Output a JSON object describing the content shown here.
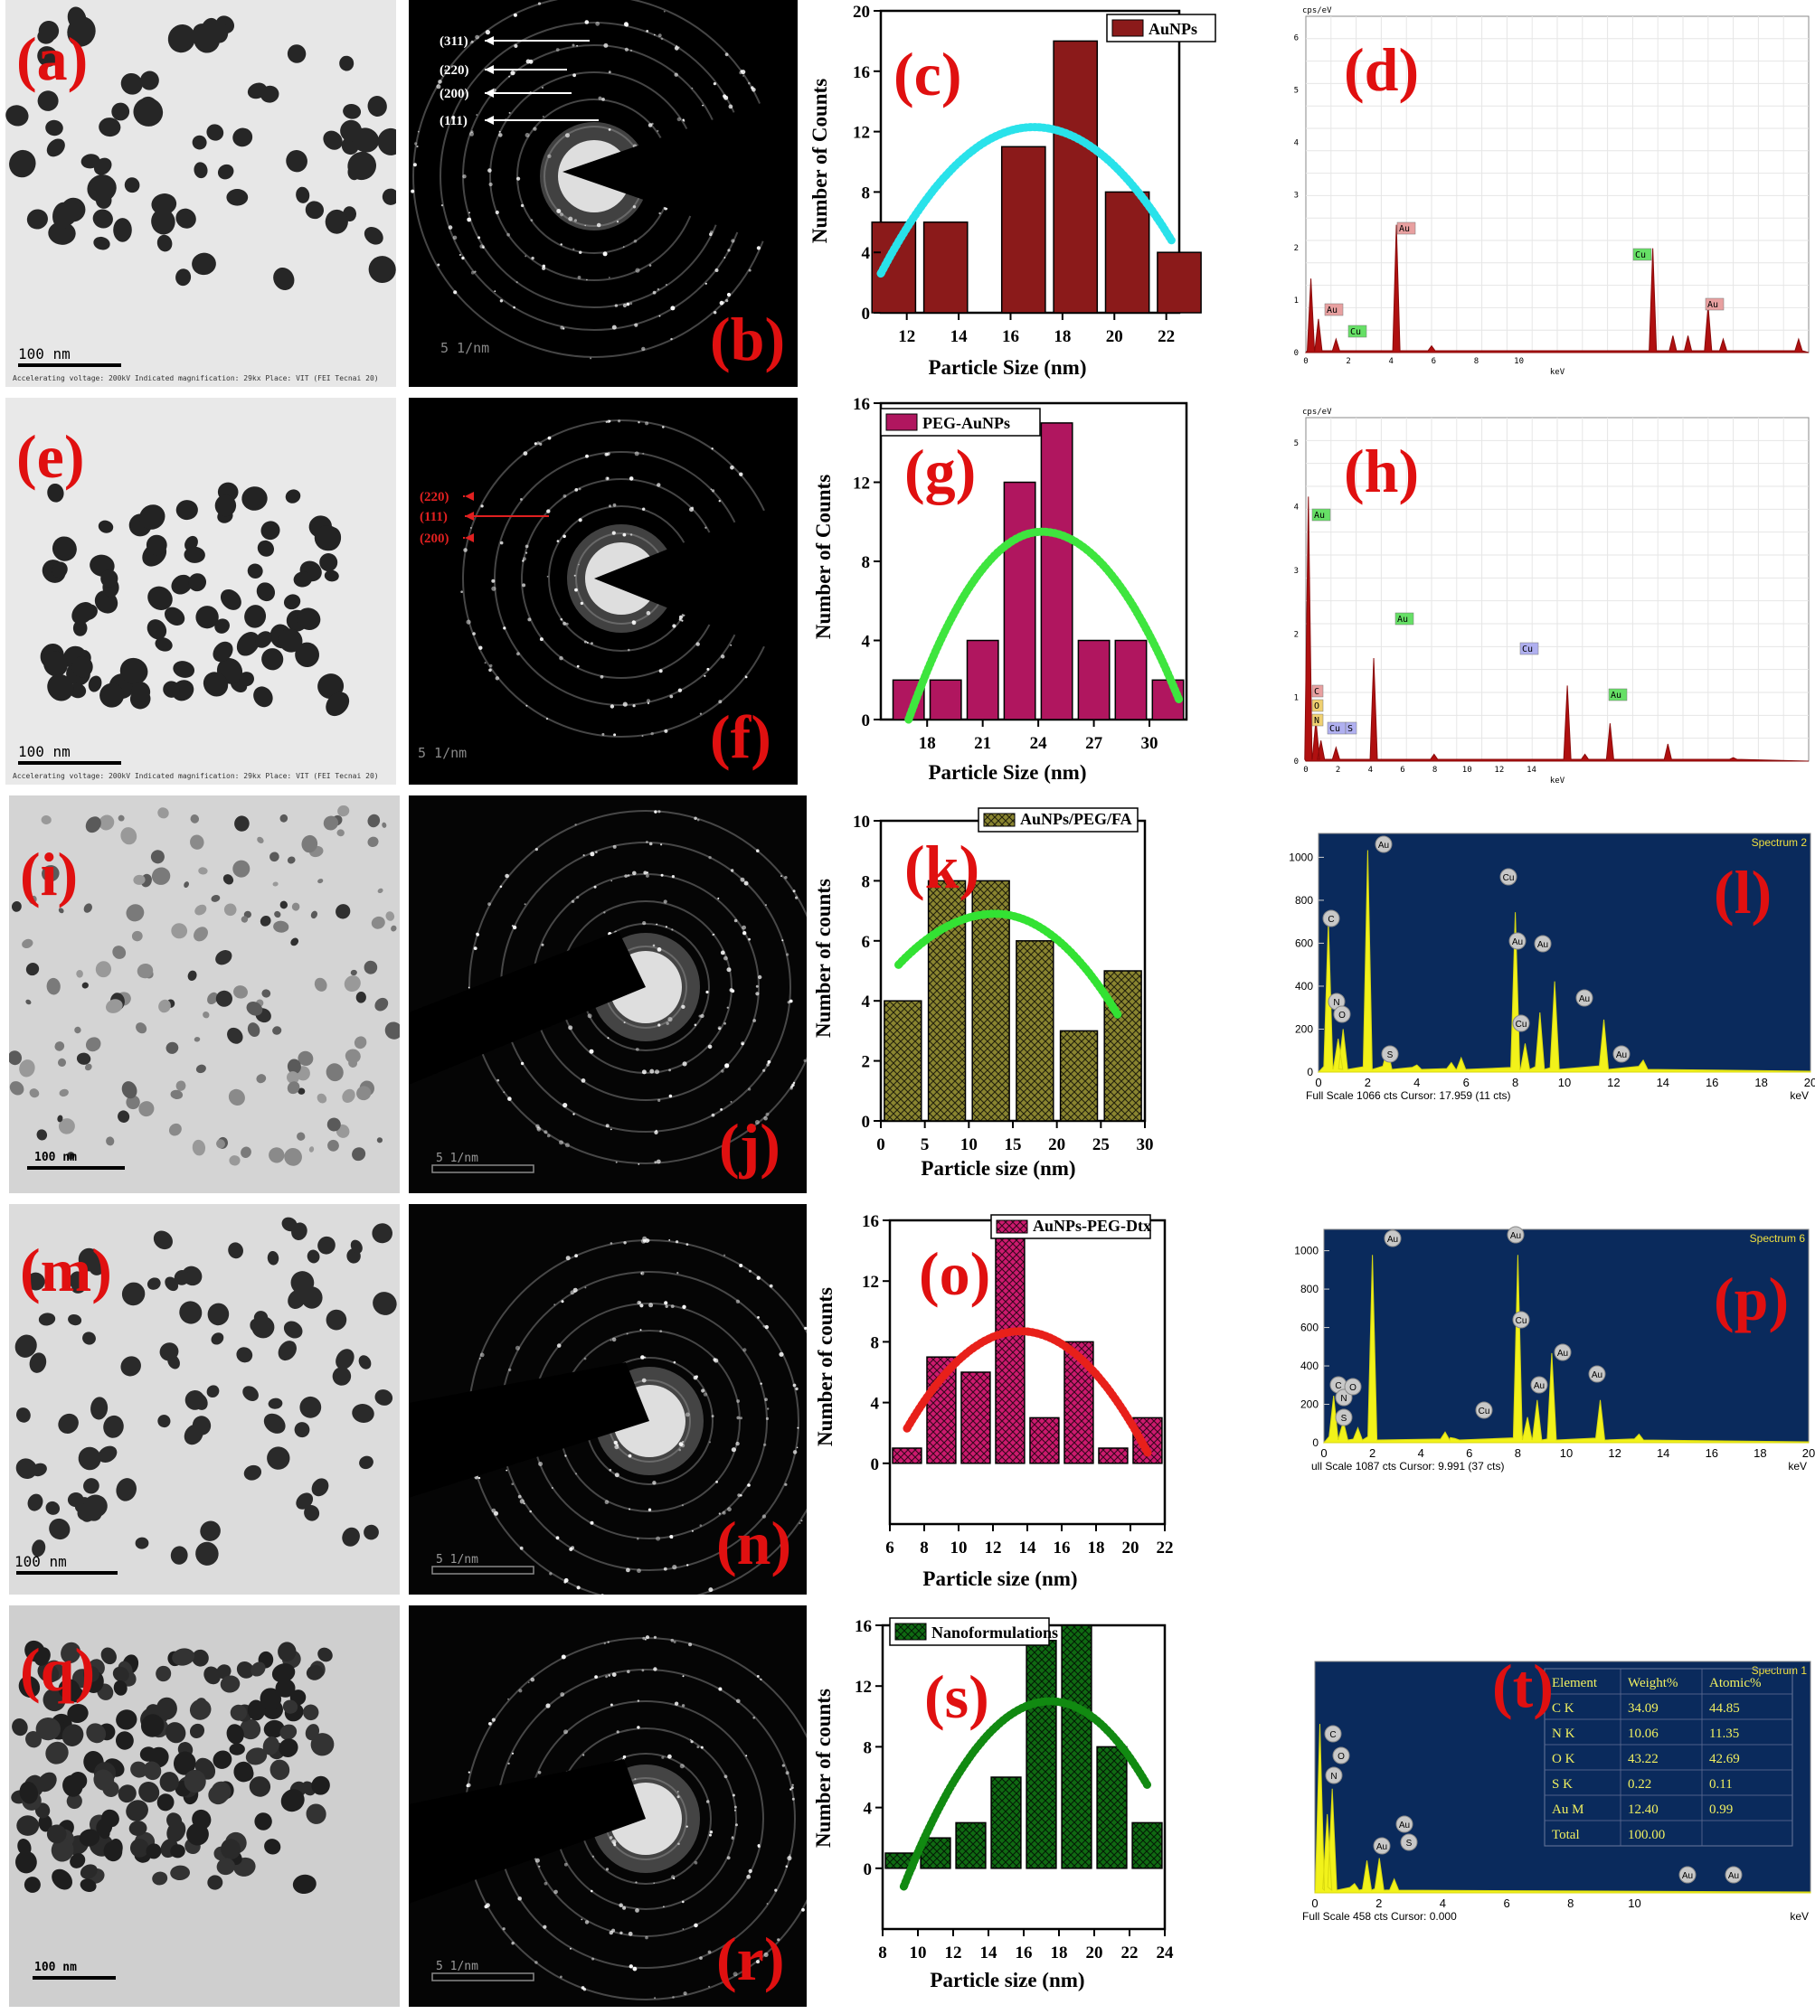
{
  "letters": [
    "(a)",
    "(b)",
    "(c)",
    "(d)",
    "(e)",
    "(f)",
    "(g)",
    "(h)",
    "(i)",
    "(j)",
    "(k)",
    "(l)",
    "(m)",
    "(n)",
    "(o)",
    "(p)",
    "(q)",
    "(r)",
    "(s)",
    "(t)"
  ],
  "tem": {
    "scale_bar": "100 nm",
    "info_line": "Accelerating voltage: 200kV  Indicated magnification: 29kx  Place: VIT (FEI Tecnai 20)"
  },
  "saed": {
    "scale_bar": "5 1/nm",
    "row1_planes": [
      "(311)",
      "(220)",
      "(200)",
      "(111)"
    ],
    "row2_planes": [
      "(220)",
      "(111)",
      "(200)"
    ]
  },
  "chart_data": [
    {
      "type": "bar",
      "id": "c",
      "legend": "AuNPs",
      "xlabel": "Particle Size (nm)",
      "ylabel": "Number of Counts",
      "x": [
        11.5,
        13.5,
        16.5,
        18.5,
        20.5,
        22.5
      ],
      "values": [
        6,
        6,
        11,
        18,
        8,
        4
      ],
      "xlim": [
        11,
        22.5
      ],
      "ylim": [
        0,
        20
      ],
      "xticks": [
        12,
        14,
        16,
        18,
        20,
        22
      ],
      "yticks": [
        0,
        4,
        8,
        12,
        16,
        20
      ],
      "fit": {
        "color": "#29e2ea",
        "vertex_x": 16.9,
        "peak": 12.3,
        "start": [
          11,
          2.6
        ],
        "end": [
          22.2,
          4.8
        ]
      },
      "bar_color": "#8b1a1a",
      "hatch": false
    },
    {
      "type": "bar",
      "id": "g",
      "legend": "PEG-AuNPs",
      "xlabel": "Particle Size (nm)",
      "ylabel": "Number of Counts",
      "x": [
        17,
        19,
        21,
        23,
        25,
        27,
        29,
        31
      ],
      "values": [
        2,
        2,
        4,
        12,
        15,
        4,
        4,
        2
      ],
      "xlim": [
        15.5,
        32
      ],
      "ylim": [
        0,
        16
      ],
      "xticks": [
        18,
        21,
        24,
        27,
        30
      ],
      "yticks": [
        0,
        4,
        8,
        12,
        16
      ],
      "fit": {
        "color": "#3ee53e",
        "vertex_x": 24.2,
        "peak": 9.5,
        "start": [
          17,
          0
        ],
        "end": [
          31.6,
          1
        ]
      },
      "bar_color": "#b0165f",
      "hatch": false
    },
    {
      "type": "bar",
      "id": "k",
      "legend": "AuNPs/PEG/FA",
      "xlabel": "Particle size (nm)",
      "ylabel": "Number of counts",
      "x": [
        2.5,
        7.5,
        12.5,
        17.5,
        22.5,
        27.5
      ],
      "values": [
        4,
        8,
        8,
        6,
        3,
        5
      ],
      "xlim": [
        0,
        30
      ],
      "ylim": [
        0,
        10
      ],
      "xticks": [
        0,
        5,
        10,
        15,
        20,
        25,
        30
      ],
      "yticks": [
        0,
        2,
        4,
        6,
        8,
        10
      ],
      "fit": {
        "color": "#33e233",
        "vertex_x": 13,
        "peak": 6.9,
        "start": [
          2,
          5.2
        ],
        "end": [
          27,
          3.5
        ]
      },
      "bar_color": "#8a8530",
      "hatch": true
    },
    {
      "type": "bar",
      "id": "o",
      "legend": "AuNPs-PEG-Dtx",
      "xlabel": "Particle size (nm)",
      "ylabel": "Number of counts",
      "x": [
        7,
        9,
        11,
        13,
        15,
        17,
        19,
        21
      ],
      "values": [
        1,
        7,
        6,
        15,
        3,
        8,
        1,
        3
      ],
      "xlim": [
        6,
        22
      ],
      "ylim": [
        -4,
        16
      ],
      "xticks": [
        6,
        8,
        10,
        12,
        14,
        16,
        18,
        20,
        22
      ],
      "yticks": [
        0,
        4,
        8,
        12,
        16
      ],
      "fit": {
        "color": "#e8201a",
        "vertex_x": 13.6,
        "peak": 8.7,
        "start": [
          7,
          2.3
        ],
        "end": [
          21,
          0.7
        ]
      },
      "bar_color": "#cc1a6e",
      "hatch": true
    },
    {
      "type": "bar",
      "id": "s",
      "legend": "Nanoformulations",
      "xlabel": "Particle size (nm)",
      "ylabel": "Number of counts",
      "x": [
        9,
        11,
        13,
        15,
        17,
        19,
        21,
        23
      ],
      "values": [
        1,
        2,
        3,
        6,
        15,
        16,
        8,
        3
      ],
      "xlim": [
        8,
        24
      ],
      "ylim": [
        -4,
        16
      ],
      "xticks": [
        8,
        10,
        12,
        14,
        16,
        18,
        20,
        22,
        24
      ],
      "yticks": [
        0,
        4,
        8,
        12,
        16
      ],
      "fit": {
        "color": "#118a11",
        "vertex_x": 17.5,
        "peak": 11,
        "start": [
          9.2,
          -1.2
        ],
        "end": [
          23,
          5.5
        ]
      },
      "bar_color": "#0f6a12",
      "hatch": true
    }
  ],
  "eds": [
    {
      "id": "d",
      "style": "white",
      "unit": "cps/eV",
      "xlabel": "keV",
      "xticks": [
        "0",
        "2",
        "4",
        "6",
        "8",
        "10"
      ],
      "yticks": [
        "0",
        "1",
        "2",
        "3",
        "4",
        "5",
        "6"
      ],
      "labels": [
        {
          "t": "Au",
          "c": "#e8a0a0"
        },
        {
          "t": "Cu",
          "c": "#66e066"
        },
        {
          "t": "Au",
          "c": "#e8a0a0"
        },
        {
          "t": "Cu",
          "c": "#66e066"
        },
        {
          "t": "Au",
          "c": "#e8a0a0"
        }
      ]
    },
    {
      "id": "h",
      "style": "white",
      "unit": "cps/eV",
      "xlabel": "keV",
      "xticks": [
        "0",
        "2",
        "4",
        "6",
        "8",
        "10",
        "12",
        "14"
      ],
      "yticks": [
        "0",
        "1",
        "2",
        "3",
        "4",
        "5"
      ],
      "labels": [
        {
          "t": "Au",
          "c": "#66e066"
        },
        {
          "t": "C",
          "c": "#e8a0a0"
        },
        {
          "t": "O",
          "c": "#f0d070"
        },
        {
          "t": "N",
          "c": "#f0d070"
        },
        {
          "t": "Cu",
          "c": "#b0b0f0"
        },
        {
          "t": "S",
          "c": "#b0b0f0"
        },
        {
          "t": "Au",
          "c": "#66e066"
        },
        {
          "t": "Cu",
          "c": "#b0b0f0"
        },
        {
          "t": "Au",
          "c": "#66e066"
        }
      ]
    },
    {
      "id": "l",
      "style": "blue",
      "spectrum": "Spectrum 2",
      "footer": "Full Scale 1066 cts Cursor: 17.959  (11 cts)",
      "xlabel": "keV",
      "xticks": [
        "0",
        "2",
        "4",
        "6",
        "8",
        "10",
        "12",
        "14",
        "16",
        "18",
        "20"
      ],
      "yticks": [
        "0",
        "200",
        "400",
        "600",
        "800",
        "1000"
      ],
      "labels": [
        "C",
        "N",
        "O",
        "Au",
        "S",
        "Cu",
        "Au",
        "Cu",
        "Au",
        "Au",
        "Au"
      ]
    },
    {
      "id": "p",
      "style": "blue",
      "spectrum": "Spectrum 6",
      "footer": "ull Scale 1087 cts Cursor: 9.991  (37 cts)",
      "xlabel": "keV",
      "xticks": [
        "0",
        "2",
        "4",
        "6",
        "8",
        "10",
        "12",
        "14",
        "16",
        "18",
        "20"
      ],
      "yticks": [
        "0",
        "200",
        "400",
        "600",
        "800",
        "1000"
      ],
      "labels": [
        "C",
        "N",
        "O",
        "Au",
        "S",
        "Cu",
        "Au",
        "Cu",
        "Au",
        "Au",
        "Au"
      ]
    },
    {
      "id": "t",
      "style": "blue",
      "spectrum": "Spectrum 1",
      "footer": "Full Scale 458 cts Cursor: 0.000",
      "xlabel": "keV",
      "xticks": [
        "0",
        "2",
        "4",
        "6",
        "8",
        "10"
      ],
      "yticks": [],
      "labels": [
        "C",
        "O",
        "N",
        "Au",
        "Au",
        "S",
        "Au",
        "Au"
      ],
      "table": {
        "headers": [
          "Element",
          "Weight%",
          "Atomic%"
        ],
        "rows": [
          [
            "C K",
            "34.09",
            "44.85"
          ],
          [
            "N K",
            "10.06",
            "11.35"
          ],
          [
            "O K",
            "43.22",
            "42.69"
          ],
          [
            "S K",
            "0.22",
            "0.11"
          ],
          [
            "Au M",
            "12.40",
            "0.99"
          ],
          [
            "Total",
            "100.00",
            ""
          ]
        ]
      }
    }
  ]
}
